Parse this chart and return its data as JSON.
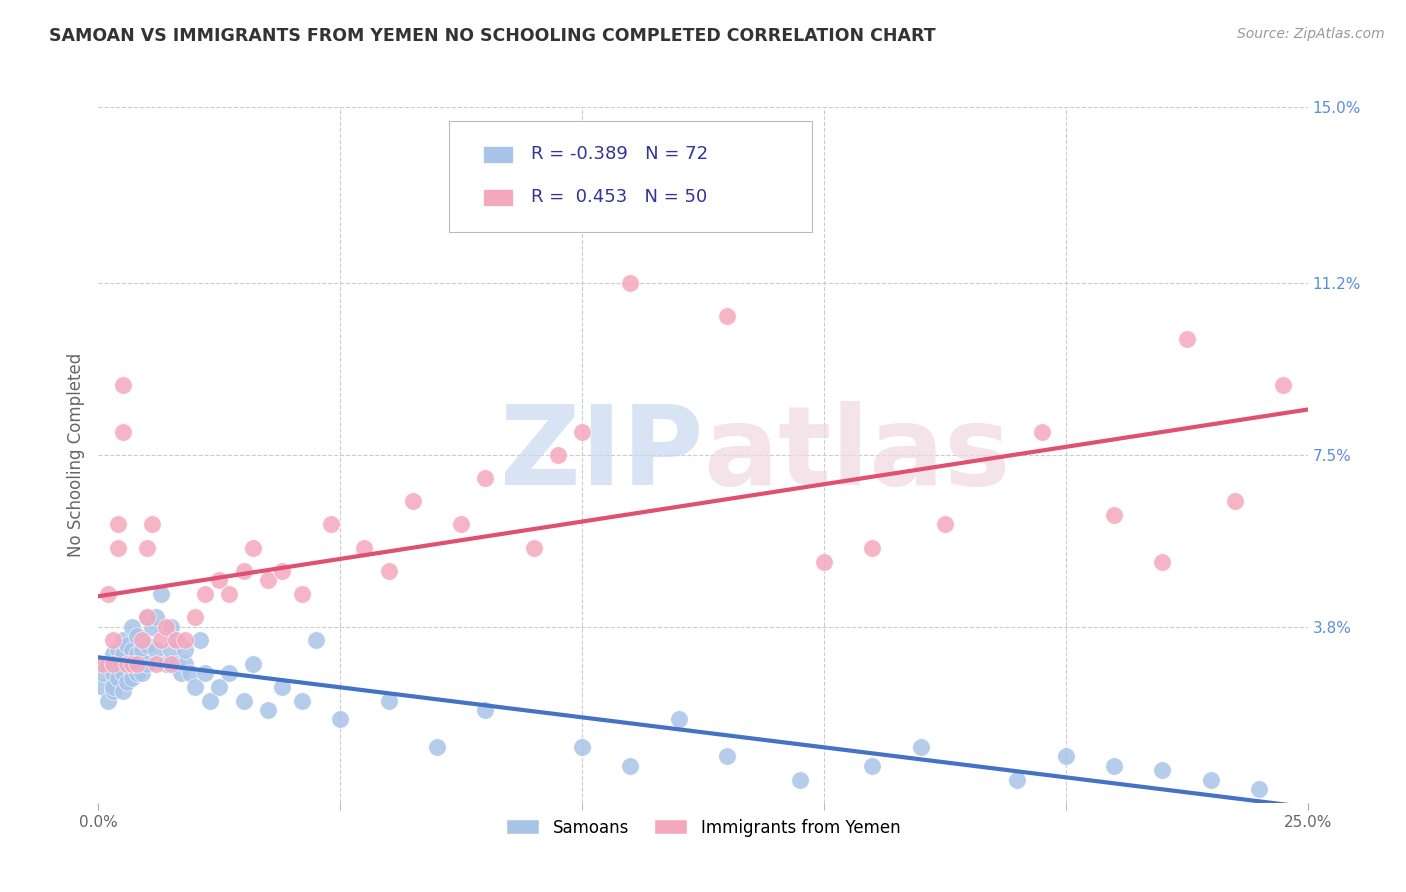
{
  "title": "SAMOAN VS IMMIGRANTS FROM YEMEN NO SCHOOLING COMPLETED CORRELATION CHART",
  "source": "Source: ZipAtlas.com",
  "ylabel": "No Schooling Completed",
  "xlim": [
    0.0,
    0.25
  ],
  "ylim": [
    0.0,
    0.15
  ],
  "xtick_positions": [
    0.0,
    0.25
  ],
  "xtick_labels": [
    "0.0%",
    "25.0%"
  ],
  "xtick_minor_positions": [
    0.05,
    0.1,
    0.15,
    0.2
  ],
  "yticks_right": [
    0.0,
    0.038,
    0.075,
    0.112,
    0.15
  ],
  "ytick_labels_right": [
    "",
    "3.8%",
    "7.5%",
    "11.2%",
    "15.0%"
  ],
  "blue_R": "-0.389",
  "blue_N": "72",
  "pink_R": "0.453",
  "pink_N": "50",
  "blue_color": "#a8c4e8",
  "pink_color": "#f4a8be",
  "blue_line_color": "#4472c4",
  "pink_line_color": "#e05070",
  "watermark_zip_color": "#c8d8f0",
  "watermark_atlas_color": "#f0d8e0",
  "blue_scatter_x": [
    0.001,
    0.001,
    0.002,
    0.002,
    0.003,
    0.003,
    0.003,
    0.003,
    0.004,
    0.004,
    0.004,
    0.005,
    0.005,
    0.005,
    0.005,
    0.006,
    0.006,
    0.006,
    0.007,
    0.007,
    0.007,
    0.007,
    0.008,
    0.008,
    0.008,
    0.009,
    0.009,
    0.01,
    0.01,
    0.01,
    0.011,
    0.012,
    0.012,
    0.013,
    0.014,
    0.015,
    0.015,
    0.016,
    0.016,
    0.017,
    0.018,
    0.018,
    0.019,
    0.02,
    0.021,
    0.022,
    0.023,
    0.025,
    0.027,
    0.03,
    0.032,
    0.035,
    0.038,
    0.042,
    0.045,
    0.05,
    0.06,
    0.07,
    0.08,
    0.1,
    0.11,
    0.12,
    0.13,
    0.145,
    0.16,
    0.17,
    0.19,
    0.2,
    0.21,
    0.22,
    0.23,
    0.24
  ],
  "blue_scatter_y": [
    0.025,
    0.028,
    0.022,
    0.03,
    0.024,
    0.028,
    0.032,
    0.025,
    0.027,
    0.03,
    0.033,
    0.024,
    0.028,
    0.032,
    0.035,
    0.026,
    0.03,
    0.034,
    0.027,
    0.03,
    0.033,
    0.038,
    0.028,
    0.032,
    0.036,
    0.028,
    0.033,
    0.03,
    0.034,
    0.04,
    0.038,
    0.033,
    0.04,
    0.045,
    0.03,
    0.033,
    0.038,
    0.03,
    0.035,
    0.028,
    0.03,
    0.033,
    0.028,
    0.025,
    0.035,
    0.028,
    0.022,
    0.025,
    0.028,
    0.022,
    0.03,
    0.02,
    0.025,
    0.022,
    0.035,
    0.018,
    0.022,
    0.012,
    0.02,
    0.012,
    0.008,
    0.018,
    0.01,
    0.005,
    0.008,
    0.012,
    0.005,
    0.01,
    0.008,
    0.007,
    0.005,
    0.003
  ],
  "pink_scatter_x": [
    0.001,
    0.002,
    0.003,
    0.003,
    0.004,
    0.004,
    0.005,
    0.005,
    0.006,
    0.007,
    0.008,
    0.009,
    0.01,
    0.01,
    0.011,
    0.012,
    0.013,
    0.014,
    0.015,
    0.016,
    0.018,
    0.02,
    0.022,
    0.025,
    0.027,
    0.03,
    0.032,
    0.035,
    0.038,
    0.042,
    0.048,
    0.055,
    0.06,
    0.065,
    0.075,
    0.08,
    0.09,
    0.095,
    0.1,
    0.11,
    0.13,
    0.15,
    0.16,
    0.175,
    0.195,
    0.21,
    0.22,
    0.225,
    0.235,
    0.245
  ],
  "pink_scatter_y": [
    0.03,
    0.045,
    0.03,
    0.035,
    0.055,
    0.06,
    0.08,
    0.09,
    0.03,
    0.03,
    0.03,
    0.035,
    0.04,
    0.055,
    0.06,
    0.03,
    0.035,
    0.038,
    0.03,
    0.035,
    0.035,
    0.04,
    0.045,
    0.048,
    0.045,
    0.05,
    0.055,
    0.048,
    0.05,
    0.045,
    0.06,
    0.055,
    0.05,
    0.065,
    0.06,
    0.07,
    0.055,
    0.075,
    0.08,
    0.112,
    0.105,
    0.052,
    0.055,
    0.06,
    0.08,
    0.062,
    0.052,
    0.1,
    0.065,
    0.09
  ]
}
